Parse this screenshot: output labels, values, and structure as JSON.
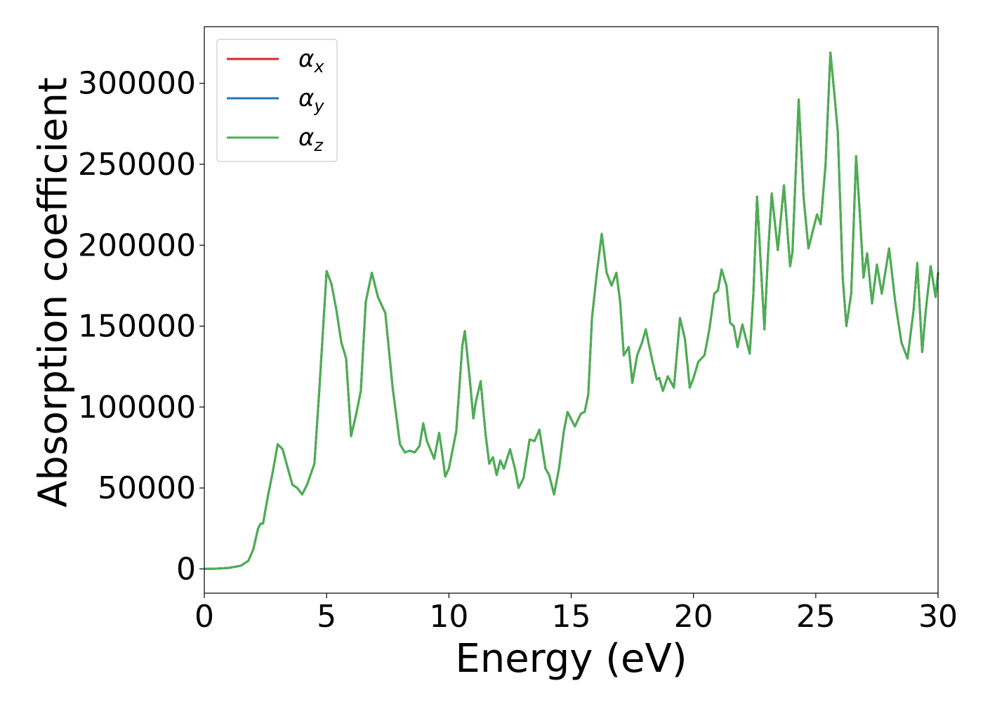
{
  "chart_data": {
    "type": "line",
    "title": "",
    "xlabel": "Energy (eV)",
    "ylabel": "Absorption coefficient",
    "xlim": [
      0,
      30
    ],
    "ylim": [
      -15000,
      335000
    ],
    "xticks": [
      0,
      5,
      10,
      15,
      20,
      25,
      30
    ],
    "yticks": [
      0,
      50000,
      100000,
      150000,
      200000,
      250000,
      300000
    ],
    "grid": false,
    "legend": "top-left",
    "series": [
      {
        "name": "α",
        "subscript": "x",
        "color": "#d62728"
      },
      {
        "name": "α",
        "subscript": "y",
        "color": "#1f77b4"
      },
      {
        "name": "α",
        "subscript": "z",
        "color": "#4caf50"
      }
    ],
    "points": [
      [
        0,
        0
      ],
      [
        0.5,
        200
      ],
      [
        1.0,
        600
      ],
      [
        1.5,
        2000
      ],
      [
        1.8,
        5000
      ],
      [
        2.0,
        12000
      ],
      [
        2.2,
        25000
      ],
      [
        2.3,
        28000
      ],
      [
        2.4,
        28000
      ],
      [
        2.6,
        45000
      ],
      [
        2.8,
        60000
      ],
      [
        3.0,
        77000
      ],
      [
        3.2,
        74000
      ],
      [
        3.4,
        63000
      ],
      [
        3.6,
        52000
      ],
      [
        3.8,
        50000
      ],
      [
        4.0,
        46000
      ],
      [
        4.2,
        52000
      ],
      [
        4.5,
        65000
      ],
      [
        4.7,
        110000
      ],
      [
        5.0,
        184000
      ],
      [
        5.2,
        176000
      ],
      [
        5.4,
        160000
      ],
      [
        5.6,
        140000
      ],
      [
        5.8,
        130000
      ],
      [
        6.0,
        82000
      ],
      [
        6.2,
        95000
      ],
      [
        6.4,
        110000
      ],
      [
        6.6,
        165000
      ],
      [
        6.85,
        183000
      ],
      [
        7.1,
        168000
      ],
      [
        7.4,
        158000
      ],
      [
        7.7,
        112000
      ],
      [
        8.0,
        77000
      ],
      [
        8.2,
        72000
      ],
      [
        8.4,
        73000
      ],
      [
        8.6,
        72000
      ],
      [
        8.8,
        76000
      ],
      [
        8.95,
        90000
      ],
      [
        9.1,
        79000
      ],
      [
        9.4,
        68000
      ],
      [
        9.6,
        84000
      ],
      [
        9.7,
        74000
      ],
      [
        9.85,
        57000
      ],
      [
        10.0,
        62000
      ],
      [
        10.3,
        85000
      ],
      [
        10.55,
        138000
      ],
      [
        10.65,
        147000
      ],
      [
        10.85,
        118000
      ],
      [
        11.0,
        93000
      ],
      [
        11.1,
        103000
      ],
      [
        11.3,
        116000
      ],
      [
        11.5,
        83000
      ],
      [
        11.65,
        65000
      ],
      [
        11.8,
        69000
      ],
      [
        11.95,
        58000
      ],
      [
        12.1,
        67000
      ],
      [
        12.25,
        62000
      ],
      [
        12.5,
        74000
      ],
      [
        12.7,
        62000
      ],
      [
        12.85,
        50000
      ],
      [
        13.05,
        56000
      ],
      [
        13.3,
        80000
      ],
      [
        13.5,
        79000
      ],
      [
        13.7,
        86000
      ],
      [
        13.95,
        62000
      ],
      [
        14.1,
        58000
      ],
      [
        14.3,
        46000
      ],
      [
        14.5,
        62000
      ],
      [
        14.7,
        85000
      ],
      [
        14.85,
        97000
      ],
      [
        15.15,
        88000
      ],
      [
        15.4,
        96000
      ],
      [
        15.55,
        97000
      ],
      [
        15.7,
        108000
      ],
      [
        15.85,
        155000
      ],
      [
        16.05,
        183000
      ],
      [
        16.25,
        207000
      ],
      [
        16.45,
        183000
      ],
      [
        16.65,
        175000
      ],
      [
        16.85,
        183000
      ],
      [
        17.0,
        165000
      ],
      [
        17.15,
        132000
      ],
      [
        17.35,
        137000
      ],
      [
        17.5,
        115000
      ],
      [
        17.7,
        132000
      ],
      [
        17.9,
        140000
      ],
      [
        18.05,
        148000
      ],
      [
        18.3,
        130000
      ],
      [
        18.5,
        117000
      ],
      [
        18.6,
        118000
      ],
      [
        18.75,
        110000
      ],
      [
        18.95,
        119000
      ],
      [
        19.2,
        112000
      ],
      [
        19.45,
        155000
      ],
      [
        19.65,
        142000
      ],
      [
        19.85,
        112000
      ],
      [
        20.0,
        118000
      ],
      [
        20.2,
        128000
      ],
      [
        20.45,
        132000
      ],
      [
        20.65,
        148000
      ],
      [
        20.85,
        170000
      ],
      [
        21.0,
        172000
      ],
      [
        21.15,
        185000
      ],
      [
        21.35,
        175000
      ],
      [
        21.5,
        152000
      ],
      [
        21.65,
        150000
      ],
      [
        21.8,
        137000
      ],
      [
        22.0,
        151000
      ],
      [
        22.3,
        133000
      ],
      [
        22.45,
        170000
      ],
      [
        22.6,
        230000
      ],
      [
        22.8,
        175000
      ],
      [
        22.9,
        148000
      ],
      [
        23.05,
        195000
      ],
      [
        23.2,
        232000
      ],
      [
        23.45,
        197000
      ],
      [
        23.7,
        237000
      ],
      [
        23.95,
        187000
      ],
      [
        24.05,
        196000
      ],
      [
        24.3,
        290000
      ],
      [
        24.5,
        230000
      ],
      [
        24.7,
        198000
      ],
      [
        24.9,
        210000
      ],
      [
        25.05,
        219000
      ],
      [
        25.2,
        213000
      ],
      [
        25.4,
        250000
      ],
      [
        25.6,
        319000
      ],
      [
        25.75,
        295000
      ],
      [
        25.9,
        270000
      ],
      [
        26.1,
        180000
      ],
      [
        26.25,
        150000
      ],
      [
        26.45,
        170000
      ],
      [
        26.65,
        255000
      ],
      [
        26.8,
        220000
      ],
      [
        26.95,
        180000
      ],
      [
        27.1,
        195000
      ],
      [
        27.3,
        164000
      ],
      [
        27.5,
        188000
      ],
      [
        27.7,
        170000
      ],
      [
        28.0,
        198000
      ],
      [
        28.25,
        165000
      ],
      [
        28.5,
        140000
      ],
      [
        28.75,
        130000
      ],
      [
        29.0,
        160000
      ],
      [
        29.15,
        189000
      ],
      [
        29.35,
        134000
      ],
      [
        29.5,
        160000
      ],
      [
        29.7,
        187000
      ],
      [
        29.9,
        168000
      ],
      [
        30.0,
        183000
      ]
    ]
  }
}
